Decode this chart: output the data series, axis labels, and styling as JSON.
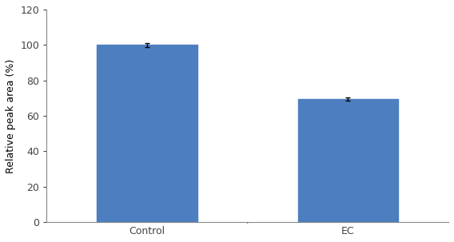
{
  "categories": [
    "Control",
    "EC"
  ],
  "values": [
    100,
    69.5
  ],
  "errors": [
    1.0,
    1.0
  ],
  "bar_color": "#4d7ebf",
  "bar_width": 0.75,
  "bar_positions": [
    0.75,
    2.25
  ],
  "ylabel": "Relative peak area (%)",
  "ylim": [
    0,
    120
  ],
  "yticks": [
    0,
    20,
    40,
    60,
    80,
    100,
    120
  ],
  "xlim": [
    0,
    3.0
  ],
  "xtick_positions": [
    0.75,
    2.25
  ],
  "background_color": "#ffffff",
  "spine_color": "#888888",
  "error_color": "#000000",
  "ylabel_fontsize": 9,
  "tick_fontsize": 9,
  "label_fontsize": 9
}
